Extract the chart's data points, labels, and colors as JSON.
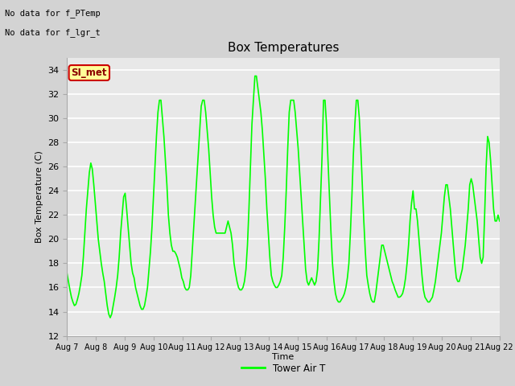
{
  "title": "Box Temperatures",
  "ylabel": "Box Temperature (C)",
  "xlabel": "Time",
  "ylim": [
    12,
    35
  ],
  "yticks": [
    12,
    14,
    16,
    18,
    20,
    22,
    24,
    26,
    28,
    30,
    32,
    34
  ],
  "no_data_text1": "No data for f_PTemp",
  "no_data_text2": "No data for f_lgr_t",
  "si_met_label": "SI_met",
  "legend_label": "Tower Air T",
  "line_color": "#00ff00",
  "fig_bg_color": "#d3d3d3",
  "plot_bg_color": "#e8e8e8",
  "grid_color": "#ffffff",
  "x_start": 7,
  "x_end": 22,
  "x_labels": [
    "Aug 7",
    "Aug 8",
    "Aug 9",
    "Aug 10",
    "Aug 11",
    "Aug 12",
    "Aug 13",
    "Aug 14",
    "Aug 15",
    "Aug 16",
    "Aug 17",
    "Aug 18",
    "Aug 19",
    "Aug 20",
    "Aug 21",
    "Aug 22"
  ],
  "x_ticks": [
    7,
    8,
    9,
    10,
    11,
    12,
    13,
    14,
    15,
    16,
    17,
    18,
    19,
    20,
    21,
    22
  ],
  "tower_air_t": [
    17.2,
    16.5,
    15.8,
    15.2,
    14.8,
    14.5,
    14.6,
    15.0,
    15.5,
    16.2,
    17.0,
    18.5,
    20.5,
    22.5,
    24.0,
    25.5,
    26.3,
    25.8,
    24.5,
    23.0,
    21.5,
    20.0,
    19.0,
    18.0,
    17.2,
    16.5,
    15.5,
    14.5,
    13.8,
    13.5,
    13.8,
    14.5,
    15.2,
    16.0,
    17.0,
    18.5,
    20.5,
    22.0,
    23.5,
    23.8,
    22.5,
    21.0,
    19.5,
    18.0,
    17.2,
    16.8,
    16.0,
    15.5,
    15.0,
    14.5,
    14.2,
    14.2,
    14.5,
    15.2,
    16.0,
    17.5,
    19.0,
    21.0,
    23.5,
    26.0,
    28.5,
    30.5,
    31.5,
    31.5,
    30.0,
    28.5,
    26.5,
    24.5,
    22.0,
    20.5,
    19.5,
    19.0,
    19.0,
    18.8,
    18.5,
    18.0,
    17.5,
    16.8,
    16.5,
    16.0,
    15.8,
    15.8,
    16.0,
    17.0,
    19.0,
    21.0,
    23.0,
    25.0,
    27.0,
    29.0,
    31.0,
    31.5,
    31.5,
    30.5,
    29.0,
    27.5,
    25.5,
    23.5,
    22.0,
    21.0,
    20.5,
    20.5,
    20.5,
    20.5,
    20.5,
    20.5,
    20.5,
    21.0,
    21.5,
    21.0,
    20.5,
    19.5,
    18.0,
    17.2,
    16.5,
    16.0,
    15.8,
    15.8,
    16.0,
    16.5,
    17.5,
    19.5,
    22.5,
    26.0,
    29.5,
    31.5,
    33.5,
    33.5,
    32.5,
    31.5,
    30.5,
    29.0,
    27.0,
    25.0,
    22.5,
    20.5,
    18.5,
    17.0,
    16.5,
    16.2,
    16.0,
    16.0,
    16.2,
    16.5,
    17.0,
    18.5,
    21.0,
    24.0,
    27.5,
    30.5,
    31.5,
    31.5,
    31.5,
    30.5,
    29.0,
    27.5,
    25.5,
    23.5,
    21.5,
    19.5,
    17.5,
    16.5,
    16.2,
    16.5,
    16.8,
    16.5,
    16.2,
    16.5,
    17.5,
    20.0,
    23.5,
    26.8,
    31.5,
    31.5,
    29.5,
    26.5,
    23.5,
    20.5,
    18.0,
    16.5,
    15.5,
    15.0,
    14.8,
    14.8,
    15.0,
    15.2,
    15.5,
    16.0,
    16.8,
    18.0,
    20.5,
    23.5,
    27.0,
    29.5,
    31.5,
    31.5,
    30.0,
    27.5,
    24.5,
    21.5,
    19.0,
    17.0,
    16.2,
    15.5,
    15.0,
    14.8,
    14.8,
    15.5,
    16.5,
    17.5,
    18.5,
    19.5,
    19.5,
    19.0,
    18.5,
    18.0,
    17.5,
    17.0,
    16.5,
    16.2,
    15.8,
    15.5,
    15.2,
    15.2,
    15.3,
    15.5,
    16.0,
    16.8,
    18.0,
    19.5,
    21.5,
    23.0,
    24.0,
    22.5,
    22.5,
    21.5,
    20.0,
    18.5,
    17.0,
    15.8,
    15.2,
    15.0,
    14.8,
    14.8,
    15.0,
    15.2,
    15.8,
    16.5,
    17.5,
    18.5,
    19.5,
    20.5,
    22.0,
    23.5,
    24.5,
    24.5,
    23.5,
    22.5,
    21.0,
    19.5,
    18.0,
    16.8,
    16.5,
    16.5,
    17.0,
    17.5,
    18.5,
    19.5,
    21.0,
    22.5,
    24.5,
    25.0,
    24.5,
    23.5,
    22.5,
    21.5,
    20.0,
    18.5,
    18.0,
    18.5,
    22.0,
    26.0,
    28.5,
    28.0,
    26.5,
    24.5,
    22.5,
    21.5,
    21.5,
    22.0,
    21.5
  ]
}
